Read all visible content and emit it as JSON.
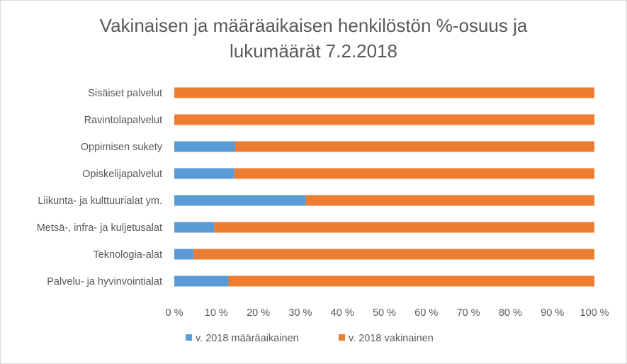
{
  "chart_data": {
    "type": "bar",
    "orientation": "horizontal",
    "stacked": "percent",
    "title_line1": "Vakinaisen ja määräaikaisen henkilöstön %-osuus ja",
    "title_line2": "lukumäärät 7.2.2018",
    "categories": [
      "Sisäiset palvelut",
      "Ravintolapalvelut",
      "Oppimisen sukety",
      "Opiskelijapalvelut",
      "Liikunta- ja kulttuurialat ym.",
      "Metsä-, infra- ja kuljetusalat",
      "Teknologia-alat",
      "Palvelu- ja hyvinvointialat"
    ],
    "series": [
      {
        "name": "v. 2018 määräaikainen",
        "color": "#5b9bd5",
        "values": [
          0,
          0,
          14.5,
          14.3,
          31.3,
          9.5,
          4.6,
          12.9
        ]
      },
      {
        "name": "v. 2018 vakinainen",
        "color": "#ed7d31",
        "values": [
          100,
          100,
          85.5,
          85.7,
          68.7,
          90.5,
          95.4,
          87.1
        ]
      }
    ],
    "x_ticks": [
      "0 %",
      "10 %",
      "20 %",
      "30 %",
      "40 %",
      "50 %",
      "60 %",
      "70 %",
      "80 %",
      "90 %",
      "100 %"
    ],
    "xlim": [
      0,
      100
    ],
    "grid": false,
    "legend_position": "bottom"
  }
}
